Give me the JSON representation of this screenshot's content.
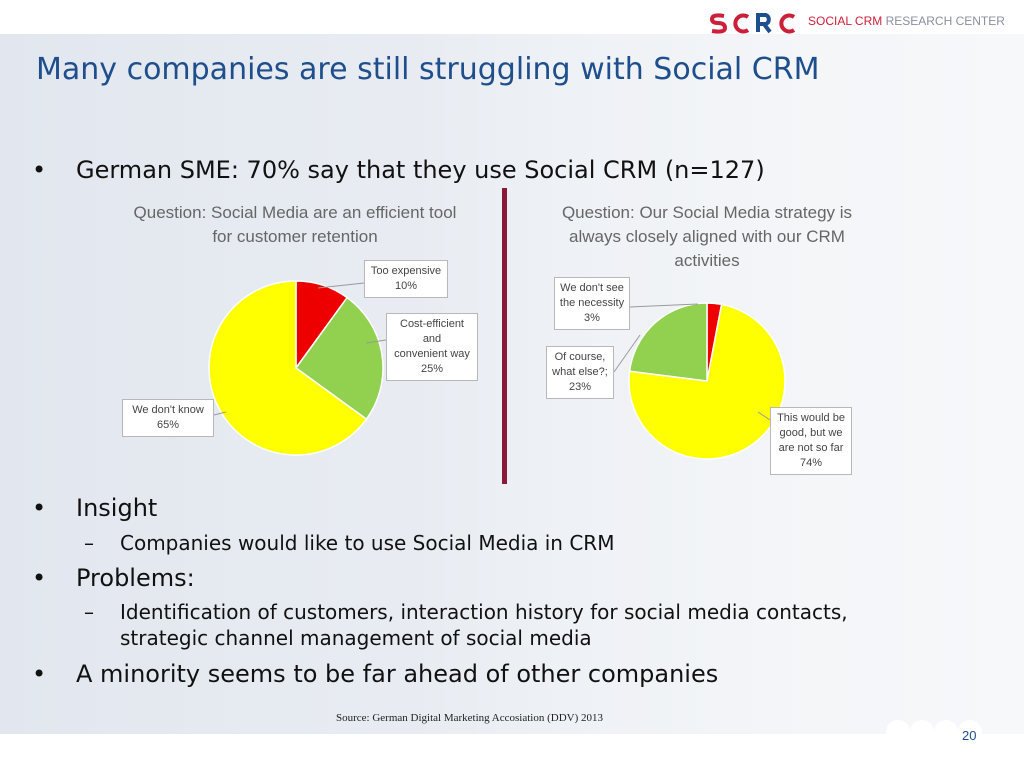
{
  "slide": {
    "title": "Many companies are still struggling with Social CRM",
    "page_number": "20",
    "source": "Source: German Digital Marketing Accosiation (DDV) 2013"
  },
  "logo": {
    "brand": "SOCIAL CRM",
    "suffix": "RESEARCH CENTER",
    "mark": "SCRC"
  },
  "bullets": {
    "b1": "German SME: 70% say that they use Social CRM (n=127)",
    "b2": "Insight",
    "b2_sub": "Companies would like to use Social Media in CRM",
    "b3": "Problems:",
    "b3_sub_line1": "Identification of customers, interaction history for social media contacts,",
    "b3_sub_line2": "strategic channel management of social media",
    "b4": "A minority seems to be far ahead of other companies",
    "bullet_char": "•",
    "dash_char": "–"
  },
  "chart_data": [
    {
      "type": "pie",
      "title_line1": "Question: Social Media are an efficient tool",
      "title_line2": "for customer retention",
      "slices": [
        {
          "label_line1": "Too expensive",
          "label_line2": "",
          "label_line3": "",
          "pct_text": "10%",
          "value": 10,
          "color": "#ee0000"
        },
        {
          "label_line1": "Cost-efficient",
          "label_line2": "and",
          "label_line3": "convenient way",
          "pct_text": "25%",
          "value": 25,
          "color": "#92d050"
        },
        {
          "label_line1": "We don't know",
          "label_line2": "",
          "label_line3": "",
          "pct_text": "65%",
          "value": 65,
          "color": "#ffff00"
        }
      ]
    },
    {
      "type": "pie",
      "title_line1": "Question: Our Social Media strategy is",
      "title_line2": "always closely aligned with our CRM",
      "title_line3": "activities",
      "slices": [
        {
          "label_line1": "We don't see",
          "label_line2": "the necessity",
          "label_line3": "",
          "pct_text": "3%",
          "value": 3,
          "color": "#ee0000"
        },
        {
          "label_line1": "This would be",
          "label_line2": "good, but we",
          "label_line3": "are not so far",
          "pct_text": "74%",
          "value": 74,
          "color": "#ffff00"
        },
        {
          "label_line1": "Of course,",
          "label_line2": "what else?;",
          "label_line3": "",
          "pct_text": "23%",
          "value": 23,
          "color": "#92d050"
        }
      ]
    }
  ]
}
